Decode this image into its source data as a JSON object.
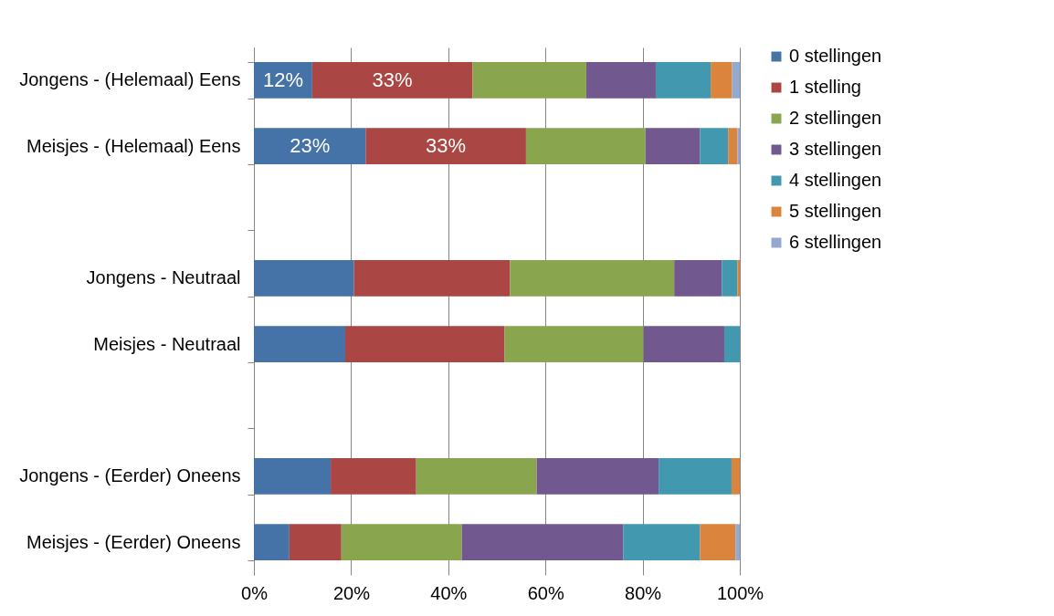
{
  "chart_data": {
    "type": "bar",
    "orientation": "horizontal",
    "stacked": true,
    "categories": [
      "Jongens - (Helemaal) Eens",
      "Meisjes - (Helemaal) Eens",
      null,
      "Jongens - Neutraal",
      "Meisjes - Neutraal",
      null,
      "Jongens - (Eerder) Oneens",
      "Meisjes - (Eerder) Oneens"
    ],
    "series": [
      {
        "name": "0 stellingen",
        "color": "#4572a7",
        "values": [
          12,
          23,
          null,
          20.6,
          18.8,
          null,
          15.8,
          7.3
        ],
        "value_labels": [
          "12%",
          "23%",
          null,
          null,
          null,
          null,
          null,
          null
        ]
      },
      {
        "name": "1 stelling",
        "color": "#aa4643",
        "values": [
          33,
          33,
          null,
          32.1,
          32.8,
          null,
          17.6,
          10.7
        ],
        "value_labels": [
          "33%",
          "33%",
          null,
          null,
          null,
          null,
          null,
          null
        ]
      },
      {
        "name": "2 stellingen",
        "color": "#89a54e",
        "values": [
          23.4,
          24.6,
          null,
          33.8,
          28.6,
          null,
          24.8,
          24.8
        ]
      },
      {
        "name": "3 stellingen",
        "color": "#71588f",
        "values": [
          14.3,
          11.2,
          null,
          9.8,
          16.6,
          null,
          25.1,
          33.2
        ]
      },
      {
        "name": "4 stellingen",
        "color": "#4198af",
        "values": [
          11.3,
          5.8,
          null,
          3.2,
          3.2,
          null,
          15,
          15.8
        ]
      },
      {
        "name": "5 stellingen",
        "color": "#db843d",
        "values": [
          4.4,
          1.9,
          null,
          0.5,
          0,
          null,
          1.7,
          7.3
        ]
      },
      {
        "name": "6 stellingen",
        "color": "#93a9cf",
        "values": [
          1.6,
          0.5,
          null,
          0,
          0,
          null,
          0,
          0.9
        ]
      }
    ],
    "xlim": [
      0,
      100
    ],
    "xticks": [
      {
        "value": 0,
        "label": "0%"
      },
      {
        "value": 20,
        "label": "20%"
      },
      {
        "value": 40,
        "label": "40%"
      },
      {
        "value": 60,
        "label": "60%"
      },
      {
        "value": 80,
        "label": "80%"
      },
      {
        "value": 100,
        "label": "100%"
      }
    ],
    "grid": "x",
    "legend": "right"
  }
}
